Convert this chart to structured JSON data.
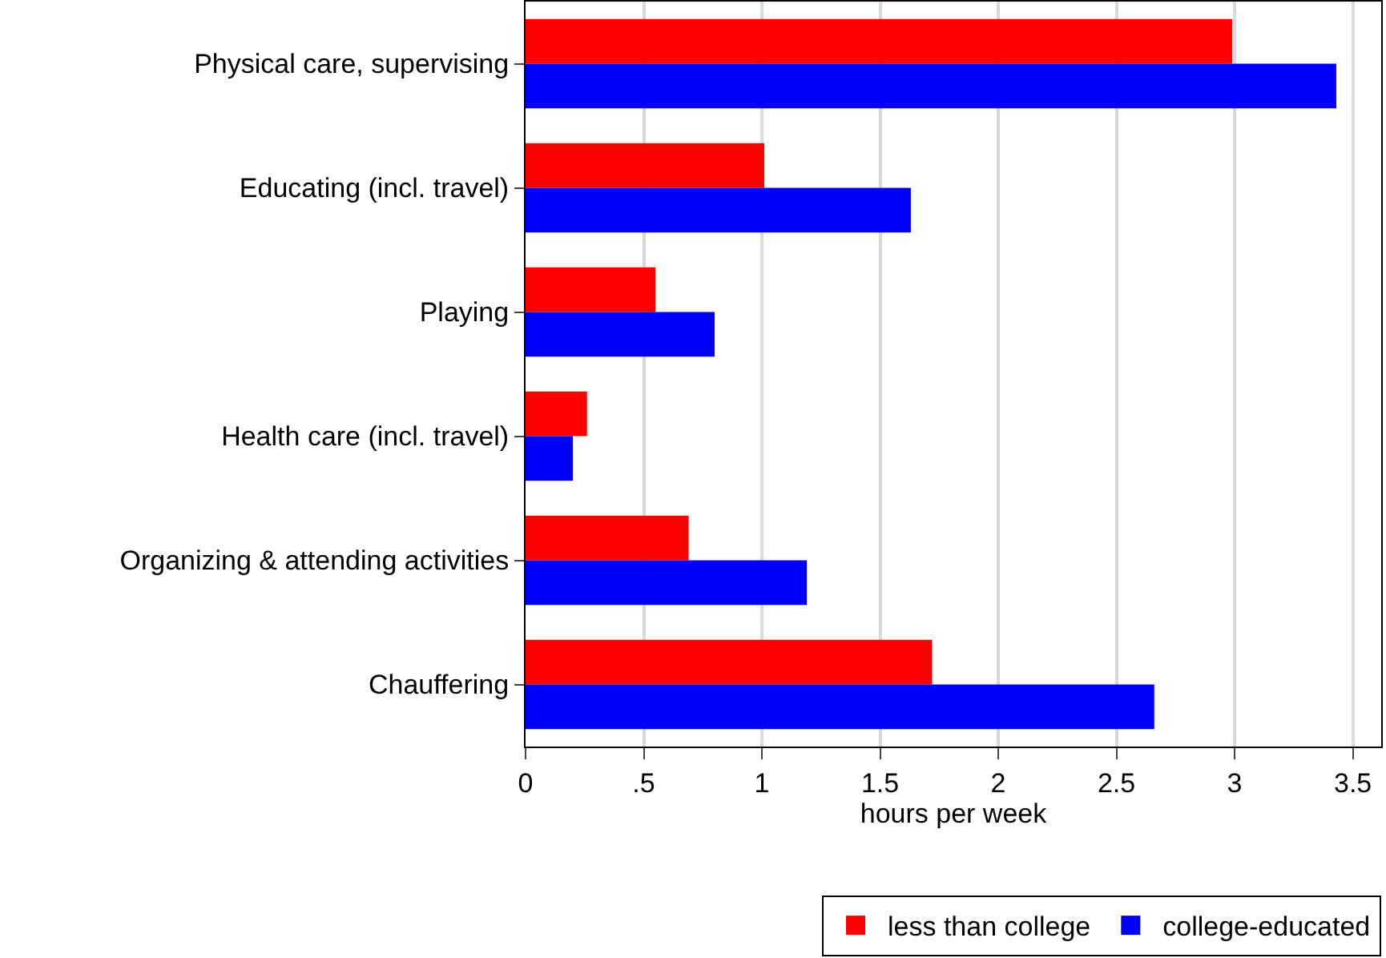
{
  "chart_data": {
    "type": "bar",
    "orientation": "horizontal",
    "xlabel": "hours per week",
    "categories": [
      "Physical care, supervising",
      "Educating (incl. travel)",
      "Playing",
      "Health care (incl. travel)",
      "Organizing & attending activities",
      "Chauffering"
    ],
    "series": [
      {
        "name": "less than college",
        "color": "#ff0000",
        "values": [
          2.99,
          1.01,
          0.55,
          0.26,
          0.69,
          1.72
        ]
      },
      {
        "name": "college-educated",
        "color": "#0000ff",
        "values": [
          3.43,
          1.63,
          0.8,
          0.2,
          1.19,
          2.66
        ]
      }
    ],
    "xlim": [
      0,
      3.62
    ],
    "xticks": [
      0,
      {
        "value": 0.5,
        "label": ".5"
      },
      1,
      1.5,
      2,
      2.5,
      3,
      3.5
    ],
    "grid": "x",
    "legend": "bottom"
  }
}
